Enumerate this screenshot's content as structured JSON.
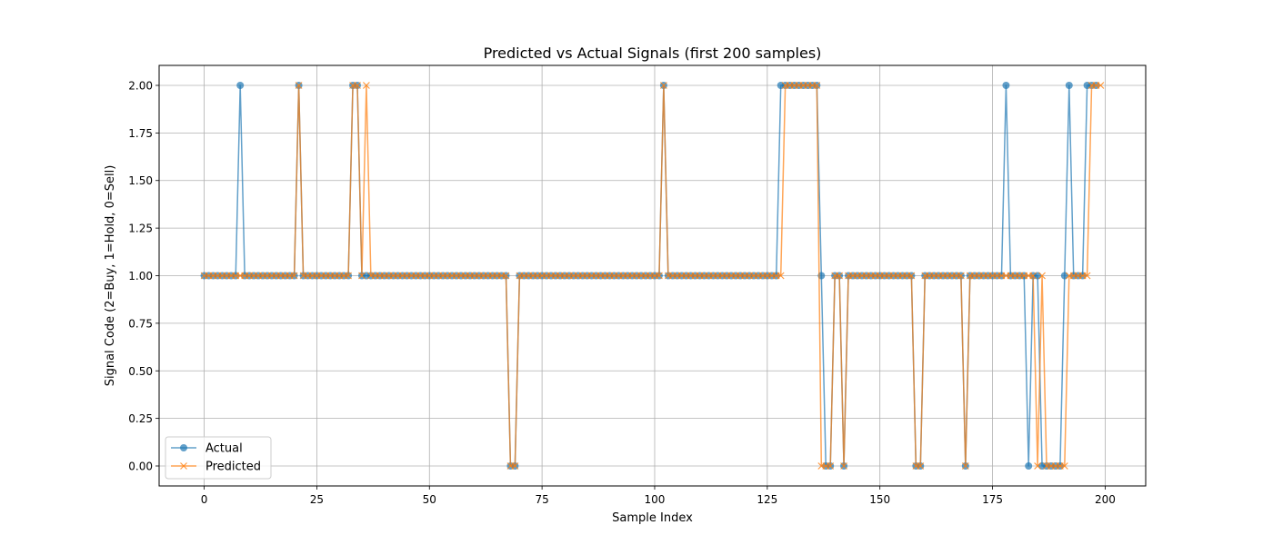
{
  "chart_data": {
    "type": "line",
    "title": "Predicted vs Actual Signals (first 200 samples)",
    "xlabel": "Sample Index",
    "ylabel": "Signal Code (2=Buy, 1=Hold, 0=Sell)",
    "xlim": [
      -10,
      209
    ],
    "ylim": [
      -0.105,
      2.105
    ],
    "xticks": [
      0,
      25,
      50,
      75,
      100,
      125,
      150,
      175,
      200
    ],
    "yticks": [
      0.0,
      0.25,
      0.5,
      0.75,
      1.0,
      1.25,
      1.5,
      1.75,
      2.0
    ],
    "ytick_labels": [
      "0.00",
      "0.25",
      "0.50",
      "0.75",
      "1.00",
      "1.25",
      "1.50",
      "1.75",
      "2.00"
    ],
    "grid": true,
    "legend": "lower-left",
    "series": [
      {
        "name": "Actual",
        "color": "#1f77b4",
        "marker": "circle",
        "values": [
          1,
          1,
          1,
          1,
          1,
          1,
          1,
          1,
          2,
          1,
          1,
          1,
          1,
          1,
          1,
          1,
          1,
          1,
          1,
          1,
          1,
          2,
          1,
          1,
          1,
          1,
          1,
          1,
          1,
          1,
          1,
          1,
          1,
          2,
          2,
          1,
          1,
          1,
          1,
          1,
          1,
          1,
          1,
          1,
          1,
          1,
          1,
          1,
          1,
          1,
          1,
          1,
          1,
          1,
          1,
          1,
          1,
          1,
          1,
          1,
          1,
          1,
          1,
          1,
          1,
          1,
          1,
          1,
          0,
          0,
          1,
          1,
          1,
          1,
          1,
          1,
          1,
          1,
          1,
          1,
          1,
          1,
          1,
          1,
          1,
          1,
          1,
          1,
          1,
          1,
          1,
          1,
          1,
          1,
          1,
          1,
          1,
          1,
          1,
          1,
          1,
          1,
          2,
          1,
          1,
          1,
          1,
          1,
          1,
          1,
          1,
          1,
          1,
          1,
          1,
          1,
          1,
          1,
          1,
          1,
          1,
          1,
          1,
          1,
          1,
          1,
          1,
          1,
          2,
          2,
          2,
          2,
          2,
          2,
          2,
          2,
          2,
          1,
          0,
          0,
          1,
          1,
          0,
          1,
          1,
          1,
          1,
          1,
          1,
          1,
          1,
          1,
          1,
          1,
          1,
          1,
          1,
          1,
          0,
          0,
          1,
          1,
          1,
          1,
          1,
          1,
          1,
          1,
          1,
          0,
          1,
          1,
          1,
          1,
          1,
          1,
          1,
          1,
          2,
          1,
          1,
          1,
          1,
          0,
          1,
          1,
          0,
          0,
          0,
          0,
          0,
          1,
          2,
          1,
          1,
          1,
          2,
          2,
          2
        ]
      },
      {
        "name": "Predicted",
        "color": "#ff7f0e",
        "marker": "x",
        "values": [
          1,
          1,
          1,
          1,
          1,
          1,
          1,
          1,
          1,
          1,
          1,
          1,
          1,
          1,
          1,
          1,
          1,
          1,
          1,
          1,
          1,
          2,
          1,
          1,
          1,
          1,
          1,
          1,
          1,
          1,
          1,
          1,
          1,
          2,
          2,
          1,
          2,
          1,
          1,
          1,
          1,
          1,
          1,
          1,
          1,
          1,
          1,
          1,
          1,
          1,
          1,
          1,
          1,
          1,
          1,
          1,
          1,
          1,
          1,
          1,
          1,
          1,
          1,
          1,
          1,
          1,
          1,
          1,
          0,
          0,
          1,
          1,
          1,
          1,
          1,
          1,
          1,
          1,
          1,
          1,
          1,
          1,
          1,
          1,
          1,
          1,
          1,
          1,
          1,
          1,
          1,
          1,
          1,
          1,
          1,
          1,
          1,
          1,
          1,
          1,
          1,
          1,
          2,
          1,
          1,
          1,
          1,
          1,
          1,
          1,
          1,
          1,
          1,
          1,
          1,
          1,
          1,
          1,
          1,
          1,
          1,
          1,
          1,
          1,
          1,
          1,
          1,
          1,
          1,
          2,
          2,
          2,
          2,
          2,
          2,
          2,
          2,
          0,
          0,
          0,
          1,
          1,
          0,
          1,
          1,
          1,
          1,
          1,
          1,
          1,
          1,
          1,
          1,
          1,
          1,
          1,
          1,
          1,
          0,
          0,
          1,
          1,
          1,
          1,
          1,
          1,
          1,
          1,
          1,
          0,
          1,
          1,
          1,
          1,
          1,
          1,
          1,
          1,
          1,
          1,
          1,
          1,
          1,
          1,
          1,
          0,
          1,
          0,
          0,
          0,
          0,
          0,
          1,
          1,
          1,
          1,
          1,
          2,
          2,
          2
        ]
      }
    ]
  }
}
